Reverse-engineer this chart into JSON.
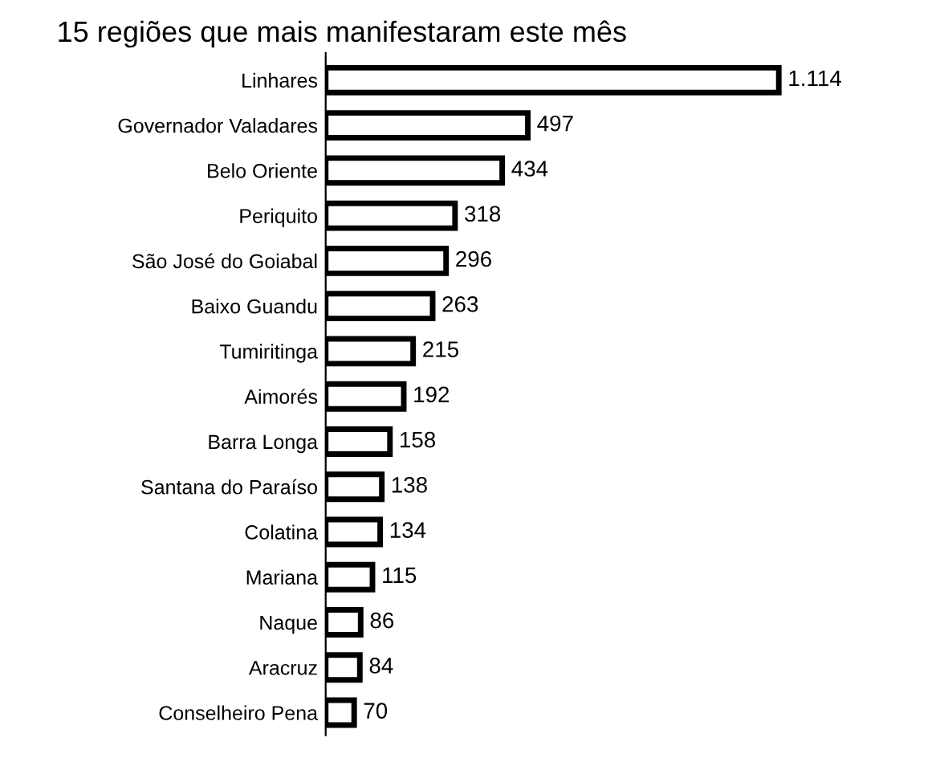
{
  "chart_data": {
    "type": "bar",
    "orientation": "horizontal",
    "title": "15 regiões que mais manifestaram este mês",
    "categories": [
      "Linhares",
      "Governador Valadares",
      "Belo Oriente",
      "Periquito",
      "São José do Goiabal",
      "Baixo Guandu",
      "Tumiritinga",
      "Aimorés",
      "Barra Longa",
      "Santana do Paraíso",
      "Colatina",
      "Mariana",
      "Naque",
      "Aracruz",
      "Conselheiro Pena"
    ],
    "values": [
      1114,
      497,
      434,
      318,
      296,
      263,
      215,
      192,
      158,
      138,
      134,
      115,
      86,
      84,
      70
    ],
    "value_labels": [
      "1.114",
      "497",
      "434",
      "318",
      "296",
      "263",
      "215",
      "192",
      "158",
      "138",
      "134",
      "115",
      "86",
      "84",
      "70"
    ],
    "color": "#ffffff",
    "grid": false,
    "legend": false
  }
}
